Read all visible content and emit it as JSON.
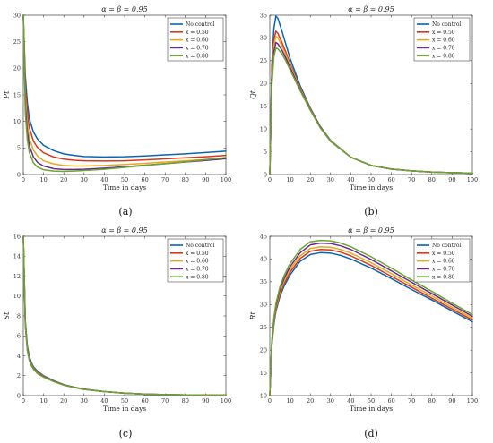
{
  "figure": {
    "series_names": [
      "No control",
      "x = 0.50",
      "x = 0.60",
      "x = 0.70",
      "x = 0.80"
    ],
    "series_colors": [
      "#0a64b0",
      "#d6381c",
      "#e9a81d",
      "#6a2a8e",
      "#6aa630"
    ]
  },
  "chart_data": [
    {
      "type": "line",
      "panel_label": "(a)",
      "title": "α = β = 0.95",
      "xlabel": "Time in days",
      "ylabel": "Pt",
      "xlim": [
        0,
        100
      ],
      "ylim": [
        0,
        30
      ],
      "xticks": [
        "0",
        "10",
        "20",
        "30",
        "40",
        "50",
        "60",
        "70",
        "80",
        "90",
        "100"
      ],
      "yticks": [
        "0",
        "5",
        "10",
        "15",
        "20",
        "25",
        "30"
      ],
      "grid": false,
      "legend": "top-right",
      "x": [
        0,
        1,
        2,
        3,
        5,
        7,
        10,
        15,
        20,
        25,
        30,
        40,
        50,
        60,
        70,
        80,
        90,
        100
      ],
      "series": [
        {
          "name": "No control",
          "values": [
            30,
            18.5,
            13.5,
            10.5,
            8.0,
            6.7,
            5.5,
            4.5,
            3.9,
            3.6,
            3.4,
            3.3,
            3.35,
            3.5,
            3.7,
            3.9,
            4.15,
            4.4
          ]
        },
        {
          "name": "x = 0.50",
          "values": [
            30,
            16.5,
            11.5,
            8.8,
            6.3,
            5.1,
            4.1,
            3.3,
            2.9,
            2.7,
            2.6,
            2.55,
            2.6,
            2.75,
            2.95,
            3.15,
            3.35,
            3.6
          ]
        },
        {
          "name": "x = 0.60",
          "values": [
            30,
            14.5,
            9.5,
            6.8,
            4.6,
            3.5,
            2.6,
            2.0,
            1.7,
            1.6,
            1.6,
            1.7,
            1.9,
            2.1,
            2.35,
            2.6,
            2.85,
            3.1
          ]
        },
        {
          "name": "x = 0.70",
          "values": [
            30,
            13.0,
            8.0,
            5.4,
            3.3,
            2.3,
            1.6,
            1.1,
            0.95,
            0.95,
            1.0,
            1.2,
            1.45,
            1.75,
            2.05,
            2.35,
            2.65,
            3.0
          ]
        },
        {
          "name": "x = 0.80",
          "values": [
            30,
            11.5,
            6.5,
            4.1,
            2.2,
            1.4,
            0.9,
            0.65,
            0.6,
            0.65,
            0.75,
            1.0,
            1.35,
            1.7,
            2.05,
            2.4,
            2.8,
            3.2
          ]
        }
      ]
    },
    {
      "type": "line",
      "panel_label": "(b)",
      "title": "α = β = 0.95",
      "xlabel": "Time in days",
      "ylabel": "Qt",
      "xlim": [
        0,
        100
      ],
      "ylim": [
        0,
        35
      ],
      "xticks": [
        "0",
        "10",
        "20",
        "30",
        "40",
        "50",
        "60",
        "70",
        "80",
        "90",
        "100"
      ],
      "yticks": [
        "0",
        "5",
        "10",
        "15",
        "20",
        "25",
        "30",
        "35"
      ],
      "grid": false,
      "legend": "top-right",
      "x": [
        0,
        1,
        2,
        3,
        4,
        6,
        8,
        10,
        15,
        20,
        25,
        30,
        40,
        50,
        60,
        70,
        80,
        90,
        100
      ],
      "series": [
        {
          "name": "No control",
          "values": [
            0,
            24,
            32,
            34.8,
            34.3,
            31.5,
            28.5,
            25.5,
            19.5,
            14.6,
            10.5,
            7.5,
            3.8,
            2.0,
            1.2,
            0.8,
            0.55,
            0.4,
            0.3
          ]
        },
        {
          "name": "x = 0.50",
          "values": [
            0,
            22.5,
            29.5,
            31.5,
            31.0,
            29.0,
            26.8,
            24.4,
            19.0,
            14.4,
            10.4,
            7.4,
            3.8,
            2.0,
            1.2,
            0.8,
            0.55,
            0.4,
            0.3
          ]
        },
        {
          "name": "x = 0.60",
          "values": [
            0,
            21.5,
            28.3,
            30.3,
            30.0,
            28.2,
            26.2,
            24.0,
            18.8,
            14.3,
            10.3,
            7.4,
            3.8,
            2.0,
            1.2,
            0.8,
            0.55,
            0.4,
            0.3
          ]
        },
        {
          "name": "x = 0.70",
          "values": [
            0,
            20.5,
            27.0,
            29.0,
            28.7,
            27.3,
            25.5,
            23.5,
            18.6,
            14.2,
            10.3,
            7.3,
            3.8,
            2.0,
            1.2,
            0.8,
            0.55,
            0.4,
            0.3
          ]
        },
        {
          "name": "x = 0.80",
          "values": [
            0,
            19.5,
            25.8,
            27.8,
            27.6,
            26.5,
            24.9,
            23.0,
            18.4,
            14.1,
            10.2,
            7.3,
            3.8,
            2.0,
            1.2,
            0.8,
            0.55,
            0.4,
            0.3
          ]
        }
      ]
    },
    {
      "type": "line",
      "panel_label": "(c)",
      "title": "α = β = 0.95",
      "xlabel": "Time in days",
      "ylabel": "St",
      "xlim": [
        0,
        100
      ],
      "ylim": [
        0,
        16
      ],
      "xticks": [
        "0",
        "10",
        "20",
        "30",
        "40",
        "50",
        "60",
        "70",
        "80",
        "90",
        "100"
      ],
      "yticks": [
        "0",
        "2",
        "4",
        "6",
        "8",
        "10",
        "12",
        "14",
        "16"
      ],
      "grid": false,
      "legend": "top-right",
      "x": [
        0,
        1,
        2,
        3,
        4,
        5,
        7,
        10,
        15,
        20,
        25,
        30,
        40,
        50,
        60,
        70,
        80,
        90,
        100
      ],
      "series": [
        {
          "name": "No control",
          "values": [
            16,
            7.5,
            5.0,
            3.9,
            3.3,
            2.9,
            2.45,
            2.0,
            1.5,
            1.1,
            0.85,
            0.65,
            0.4,
            0.25,
            0.15,
            0.1,
            0.07,
            0.05,
            0.04
          ]
        },
        {
          "name": "x = 0.50",
          "values": [
            16,
            7.3,
            4.8,
            3.7,
            3.15,
            2.8,
            2.35,
            1.95,
            1.45,
            1.08,
            0.83,
            0.64,
            0.4,
            0.25,
            0.15,
            0.1,
            0.07,
            0.05,
            0.04
          ]
        },
        {
          "name": "x = 0.60",
          "values": [
            16,
            7.2,
            4.7,
            3.6,
            3.1,
            2.75,
            2.3,
            1.9,
            1.43,
            1.07,
            0.82,
            0.63,
            0.4,
            0.25,
            0.15,
            0.1,
            0.07,
            0.05,
            0.04
          ]
        },
        {
          "name": "x = 0.70",
          "values": [
            16,
            7.1,
            4.6,
            3.55,
            3.05,
            2.7,
            2.25,
            1.88,
            1.42,
            1.06,
            0.82,
            0.63,
            0.4,
            0.25,
            0.15,
            0.1,
            0.07,
            0.05,
            0.04
          ]
        },
        {
          "name": "x = 0.80",
          "values": [
            16,
            7.0,
            4.5,
            3.5,
            3.0,
            2.65,
            2.2,
            1.85,
            1.4,
            1.05,
            0.81,
            0.62,
            0.4,
            0.25,
            0.15,
            0.1,
            0.07,
            0.05,
            0.04
          ]
        }
      ]
    },
    {
      "type": "line",
      "panel_label": "(d)",
      "title": "α = β = 0.95",
      "xlabel": "Time in days",
      "ylabel": "Rt",
      "xlim": [
        0,
        100
      ],
      "ylim": [
        10,
        45
      ],
      "xticks": [
        "0",
        "10",
        "20",
        "30",
        "40",
        "50",
        "60",
        "70",
        "80",
        "90",
        "100"
      ],
      "yticks": [
        "10",
        "15",
        "20",
        "25",
        "30",
        "35",
        "40",
        "45"
      ],
      "grid": false,
      "legend": "top-right",
      "x": [
        0,
        1,
        2,
        3,
        5,
        7,
        10,
        15,
        20,
        25,
        30,
        35,
        40,
        50,
        60,
        70,
        80,
        90,
        100
      ],
      "series": [
        {
          "name": "No control",
          "values": [
            10,
            21,
            25.5,
            28.5,
            31.8,
            34.0,
            36.5,
            39.5,
            41.0,
            41.4,
            41.3,
            40.8,
            40.0,
            38.0,
            35.7,
            33.3,
            31.0,
            28.6,
            26.2
          ]
        },
        {
          "name": "x = 0.50",
          "values": [
            10,
            21.3,
            25.9,
            28.9,
            32.3,
            34.6,
            37.1,
            40.1,
            41.7,
            42.1,
            42.0,
            41.5,
            40.7,
            38.6,
            36.2,
            33.8,
            31.4,
            29.0,
            26.6
          ]
        },
        {
          "name": "x = 0.60",
          "values": [
            10,
            21.6,
            26.2,
            29.3,
            32.8,
            35.1,
            37.7,
            40.7,
            42.3,
            42.7,
            42.6,
            42.1,
            41.3,
            39.2,
            36.8,
            34.3,
            31.9,
            29.4,
            27.0
          ]
        },
        {
          "name": "x = 0.70",
          "values": [
            10,
            21.9,
            26.6,
            29.7,
            33.3,
            35.7,
            38.3,
            41.4,
            43.1,
            43.5,
            43.4,
            42.9,
            42.1,
            39.9,
            37.4,
            34.9,
            32.4,
            29.9,
            27.4
          ]
        },
        {
          "name": "x = 0.80",
          "values": [
            10,
            22.2,
            27.0,
            30.2,
            33.9,
            36.3,
            39.0,
            42.1,
            43.8,
            44.1,
            44.0,
            43.5,
            42.7,
            40.5,
            38.0,
            35.4,
            32.9,
            30.3,
            27.8
          ]
        }
      ]
    }
  ]
}
